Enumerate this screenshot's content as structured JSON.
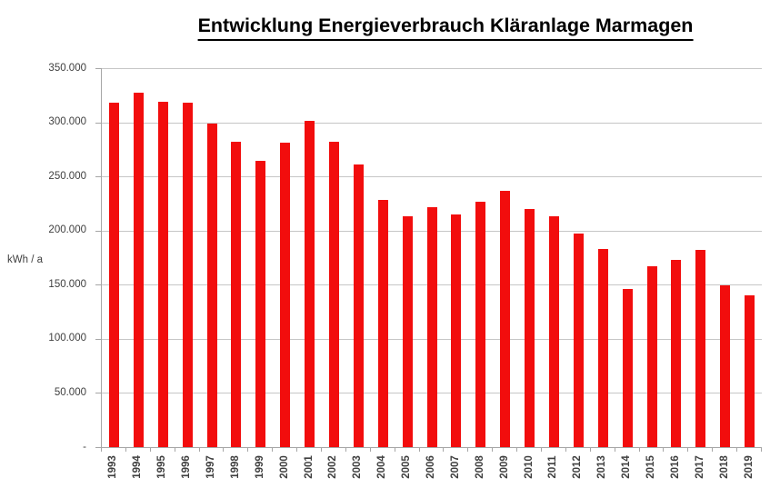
{
  "title": "Entwicklung Energieverbrauch Kläranlage Marmagen",
  "chart_data": {
    "type": "bar",
    "title": "Entwicklung Energieverbrauch Kläranlage Marmagen",
    "xlabel": "",
    "ylabel": "kWh / a",
    "categories": [
      "1993",
      "1994",
      "1995",
      "1996",
      "1997",
      "1998",
      "1999",
      "2000",
      "2001",
      "2002",
      "2003",
      "2004",
      "2005",
      "2006",
      "2007",
      "2008",
      "2009",
      "2010",
      "2011",
      "2012",
      "2013",
      "2014",
      "2015",
      "2016",
      "2017",
      "2018",
      "2019"
    ],
    "values": [
      318000,
      327000,
      319000,
      318000,
      299000,
      282000,
      264000,
      281000,
      301000,
      282000,
      261000,
      228000,
      213000,
      222000,
      215000,
      227000,
      237000,
      220000,
      213000,
      197000,
      183000,
      146000,
      167000,
      173000,
      182000,
      149000,
      140000
    ],
    "ylim": [
      0,
      350000
    ],
    "ytick_interval": 50000,
    "ytick_labels": [
      "350.000",
      "300.000",
      "250.000",
      "200.000",
      "150.000",
      "100.000",
      "50.000",
      "-"
    ],
    "grid": true,
    "legend": false,
    "bar_color": "#F20D0D",
    "gridline_color": "#C6C6C6",
    "axis_color": "#A6A6A6",
    "label_color": "#3F3F3F",
    "title_color": "#000000"
  }
}
